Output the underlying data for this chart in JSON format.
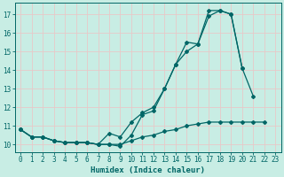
{
  "xlabel": "Humidex (Indice chaleur)",
  "bg_color": "#c8ede4",
  "grid_color": "#e8c8c8",
  "line_color": "#006666",
  "x_values": [
    0,
    1,
    2,
    3,
    4,
    5,
    6,
    7,
    8,
    9,
    10,
    11,
    12,
    13,
    14,
    15,
    16,
    17,
    18,
    19,
    20,
    21,
    22,
    23
  ],
  "line1": [
    10.8,
    10.4,
    10.4,
    10.2,
    10.1,
    10.1,
    10.1,
    10.0,
    10.0,
    9.9,
    10.5,
    11.6,
    11.8,
    13.0,
    14.3,
    15.5,
    15.4,
    17.2,
    17.2,
    17.0,
    14.1,
    null,
    null,
    null
  ],
  "line2": [
    10.8,
    10.4,
    10.4,
    10.2,
    10.1,
    10.1,
    10.1,
    10.0,
    10.6,
    10.4,
    11.2,
    11.7,
    12.0,
    13.0,
    14.3,
    15.0,
    15.4,
    16.9,
    17.2,
    17.0,
    14.1,
    12.6,
    null,
    null
  ],
  "line3": [
    10.8,
    10.4,
    10.4,
    10.2,
    10.1,
    10.1,
    10.1,
    10.0,
    10.0,
    10.0,
    10.2,
    10.4,
    10.5,
    10.7,
    10.8,
    11.0,
    11.1,
    11.2,
    11.2,
    11.2,
    11.2,
    11.2,
    11.2,
    null
  ],
  "ylim": [
    9.6,
    17.6
  ],
  "yticks": [
    10,
    11,
    12,
    13,
    14,
    15,
    16,
    17
  ],
  "xticks": [
    0,
    1,
    2,
    3,
    4,
    5,
    6,
    7,
    8,
    9,
    10,
    11,
    12,
    13,
    14,
    15,
    16,
    17,
    18,
    19,
    20,
    21,
    22,
    23
  ],
  "tick_fontsize": 5.5,
  "label_fontsize": 6.5
}
